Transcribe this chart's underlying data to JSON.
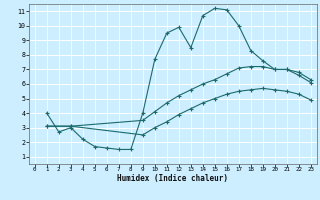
{
  "title": "",
  "xlabel": "Humidex (Indice chaleur)",
  "xlim": [
    -0.5,
    23.5
  ],
  "ylim": [
    0.5,
    11.5
  ],
  "xticks": [
    0,
    1,
    2,
    3,
    4,
    5,
    6,
    7,
    8,
    9,
    10,
    11,
    12,
    13,
    14,
    15,
    16,
    17,
    18,
    19,
    20,
    21,
    22,
    23
  ],
  "yticks": [
    1,
    2,
    3,
    4,
    5,
    6,
    7,
    8,
    9,
    10,
    11
  ],
  "background_color": "#cceeff",
  "grid_color": "#ffffff",
  "line_color": "#1a6b6b",
  "series": [
    {
      "x": [
        1,
        2,
        3,
        4,
        5,
        6,
        7,
        8,
        9,
        10,
        11,
        12,
        13,
        14,
        15,
        16,
        17,
        18,
        19,
        20,
        21,
        22,
        23
      ],
      "y": [
        4.0,
        2.7,
        3.0,
        2.2,
        1.7,
        1.6,
        1.5,
        1.5,
        4.0,
        7.7,
        9.5,
        9.9,
        8.5,
        10.7,
        11.2,
        11.1,
        10.0,
        8.3,
        7.6,
        7.0,
        7.0,
        6.6,
        6.1
      ]
    },
    {
      "x": [
        1,
        3,
        9,
        10,
        11,
        12,
        13,
        14,
        15,
        16,
        17,
        18,
        19,
        20,
        21,
        22,
        23
      ],
      "y": [
        3.1,
        3.1,
        3.5,
        4.1,
        4.7,
        5.2,
        5.6,
        6.0,
        6.3,
        6.7,
        7.1,
        7.2,
        7.2,
        7.0,
        7.0,
        6.8,
        6.3
      ]
    },
    {
      "x": [
        1,
        3,
        9,
        10,
        11,
        12,
        13,
        14,
        15,
        16,
        17,
        18,
        19,
        20,
        21,
        22,
        23
      ],
      "y": [
        3.1,
        3.1,
        2.5,
        3.0,
        3.4,
        3.9,
        4.3,
        4.7,
        5.0,
        5.3,
        5.5,
        5.6,
        5.7,
        5.6,
        5.5,
        5.3,
        4.9
      ]
    }
  ]
}
